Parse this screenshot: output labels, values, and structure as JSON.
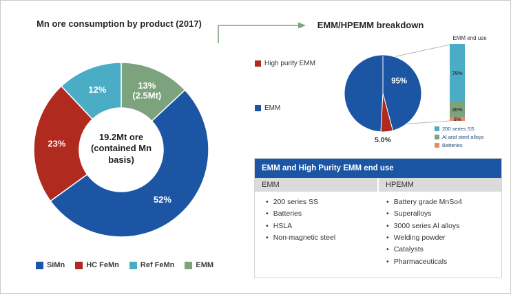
{
  "colors": {
    "blue": "#1B55A4",
    "red": "#B02A20",
    "teal": "#4BACC6",
    "green": "#7CA37D",
    "orange": "#E8896B",
    "arrow": "#7CA37D",
    "leader": "#B5B5B5",
    "table_header": "#1B55A4",
    "table_subheader": "#DBDBDB"
  },
  "chart_data": [
    {
      "type": "pie",
      "subtype": "donut",
      "title": "Mn ore consumption by product (2017)",
      "center_label": "19.2Mt ore\n(contained Mn\nbasis)",
      "slices": [
        {
          "label": "EMM",
          "value": 13,
          "display": "13%\n(2.5Mt)",
          "color": "#7CA37D"
        },
        {
          "label": "SiMn",
          "value": 52,
          "display": "52%",
          "color": "#1B55A4"
        },
        {
          "label": "HC FeMn",
          "value": 23,
          "display": "23%",
          "color": "#B02A20"
        },
        {
          "label": "Ref FeMn",
          "value": 12,
          "display": "12%",
          "color": "#4BACC6"
        }
      ],
      "legend": [
        "SiMn",
        "HC FeMn",
        "Ref FeMn",
        "EMM"
      ],
      "legend_position": "bottom",
      "start_angle_deg": 0
    },
    {
      "type": "pie",
      "title": "EMM/HPEMM breakdown",
      "slices": [
        {
          "label": "EMM",
          "value": 95,
          "display": "95%",
          "color": "#1B55A4",
          "label_angle_deg": 52,
          "label_r": 30
        },
        {
          "label": "High purity EMM",
          "value": 5,
          "display": "5.0%",
          "color": "#B02A20",
          "show_label": false
        }
      ],
      "legend": [
        "High purity EMM",
        "EMM"
      ],
      "legend_position": "left",
      "start_angle_deg": 183
    },
    {
      "type": "bar",
      "stacked": true,
      "title": "EMM end use",
      "categories": [
        "EMM end use"
      ],
      "series": [
        {
          "name": "200 series SS",
          "values": [
            75
          ],
          "display": "75%",
          "color": "#4BACC6",
          "label_color": "#333333"
        },
        {
          "name": "Al and steel alloys",
          "values": [
            20
          ],
          "display": "20%",
          "color": "#7CA37D",
          "label_color": "#333333"
        },
        {
          "name": "Batteries",
          "values": [
            5
          ],
          "display": "5%",
          "color": "#E8896B",
          "label_color": "#333333"
        }
      ],
      "ylim": [
        0,
        100
      ],
      "legend_position": "bottom"
    },
    {
      "type": "table",
      "title": "EMM and High Purity EMM end use",
      "columns": [
        {
          "header": "EMM",
          "items": [
            "200 series SS",
            "Batteries",
            "HSLA",
            "Non-magnetic steel"
          ]
        },
        {
          "header": "HPEMM",
          "items": [
            "Battery grade MnSo4",
            "Superalloys",
            "3000 series Al alloys",
            "Welding powder",
            "Catalysts",
            "Pharmaceuticals"
          ]
        }
      ]
    }
  ]
}
